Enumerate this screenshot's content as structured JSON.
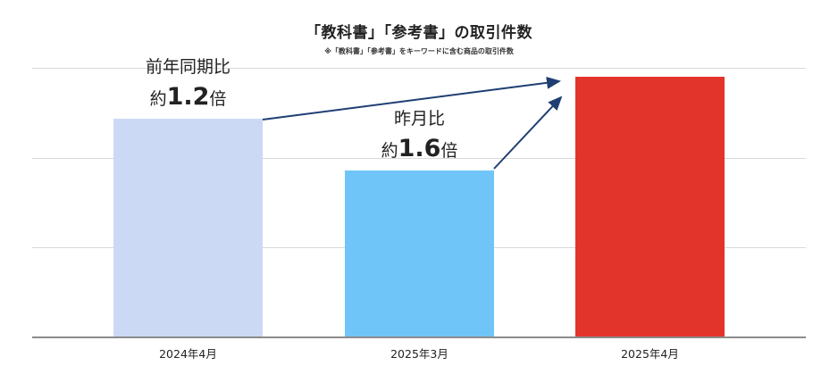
{
  "chart_data": {
    "type": "bar",
    "title": "「教科書」「参考書」の取引件数",
    "subtitle": "※「教科書」「参考書」をキーワードに含む商品の取引件数",
    "xlabel": "",
    "ylabel": "",
    "grid": true,
    "y_axis_labels_shown": false,
    "categories": [
      "2024年4月",
      "2025年3月",
      "2025年4月"
    ],
    "values": [
      84,
      64,
      100
    ],
    "values_note": "relative index (2025年4月 = 100), estimated from bar heights; no axis values shown",
    "colors": [
      "#cbd9f4",
      "#70c5f8",
      "#e3342b"
    ],
    "annotations": [
      {
        "label": "前年同期比",
        "prefix": "約",
        "value": "1.2",
        "suffix": "倍",
        "from": "2024年4月",
        "to": "2025年4月"
      },
      {
        "label": "昨月比",
        "prefix": "約",
        "value": "1.6",
        "suffix": "倍",
        "from": "2025年3月",
        "to": "2025年4月"
      }
    ],
    "arrow_color": "#1f3f73"
  },
  "labels": {
    "title": "「教科書」「参考書」の取引件数",
    "subtitle": "※「教科書」「参考書」をキーワードに含む商品の取引件数",
    "x0": "2024年4月",
    "x1": "2025年3月",
    "x2": "2025年4月",
    "a0_label": "前年同期比",
    "a0_prefix": "約",
    "a0_value": "1.2",
    "a0_suffix": "倍",
    "a1_label": "昨月比",
    "a1_prefix": "約",
    "a1_value": "1.6",
    "a1_suffix": "倍"
  }
}
